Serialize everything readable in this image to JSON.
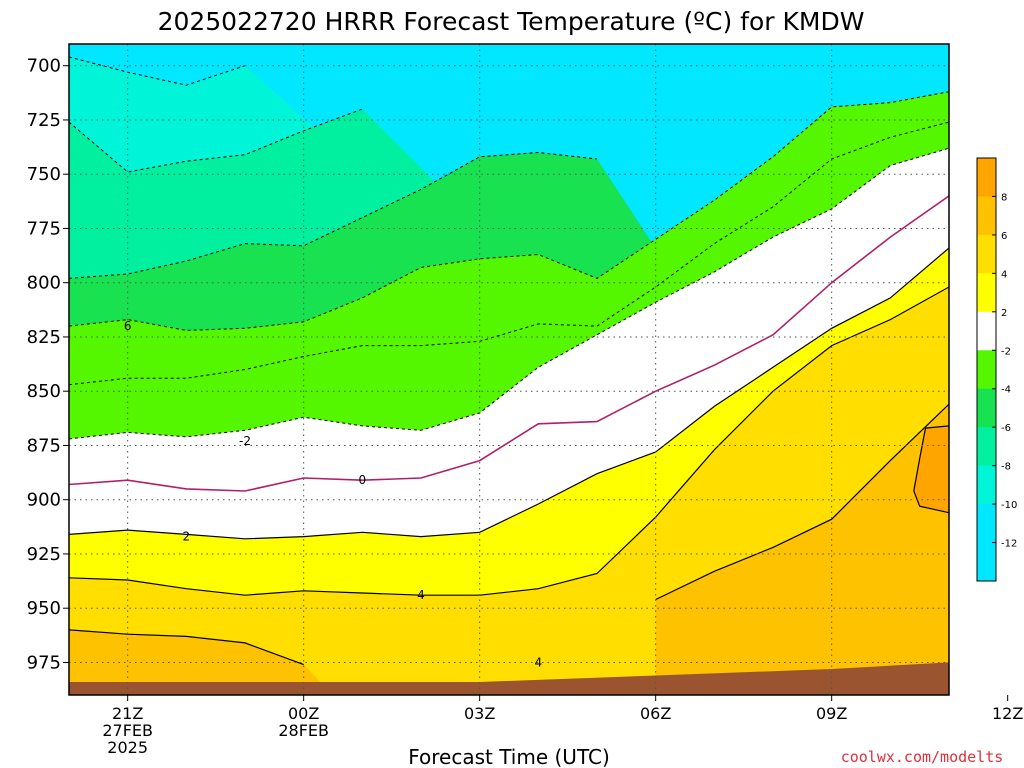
{
  "colors": {
    "ground": "#9b5430",
    "m12": "#00e7ff",
    "m10": "#00f5d8",
    "m8": "#00f0a0",
    "m6": "#18e250",
    "m4": "#54f700",
    "m2": "#ffffff",
    "p2": "#ffff00",
    "p4": "#ffde00",
    "p6": "#ffc200",
    "p8": "#ffa500",
    "zero_line": "#b0206a"
  },
  "chart_data": {
    "type": "contour",
    "title": "2025022720 HRRR Forecast Temperature (ºC) for KMDW",
    "xlabel": "Forecast Time (UTC)",
    "ylabel": "",
    "credit": "coolwx.com/modelts",
    "x_hours_from_start": [
      -1,
      14
    ],
    "ylim": [
      990,
      690
    ],
    "y_tick_labels": [
      "700",
      "725",
      "750",
      "775",
      "800",
      "825",
      "850",
      "875",
      "900",
      "925",
      "950",
      "975"
    ],
    "x_ticks": [
      {
        "label": "21Z",
        "sub": [
          "27FEB",
          "2025"
        ]
      },
      {
        "label": "00Z",
        "sub": [
          "28FEB"
        ]
      },
      {
        "label": "03Z",
        "sub": []
      },
      {
        "label": "06Z",
        "sub": []
      },
      {
        "label": "09Z",
        "sub": []
      },
      {
        "label": "12Z",
        "sub": []
      }
    ],
    "colorbar_labels": [
      "8",
      "6",
      "4",
      "2",
      "-2",
      "-4",
      "-6",
      "-8",
      "-10",
      "-12"
    ],
    "contour_labels": [
      "6",
      "-2",
      "0",
      "2",
      "4",
      "4"
    ],
    "series": [
      {
        "name": "-12",
        "points": [
          [
            -1,
            690
          ],
          [
            -1,
            696
          ],
          [
            0,
            703
          ],
          [
            1,
            709
          ],
          [
            2,
            700
          ],
          [
            2,
            690
          ]
        ]
      },
      {
        "name": "-10",
        "points": [
          [
            -1,
            690
          ],
          [
            -1,
            726
          ],
          [
            0,
            749
          ],
          [
            1,
            744
          ],
          [
            2,
            741
          ],
          [
            3,
            730
          ],
          [
            4,
            720
          ],
          [
            4,
            690
          ]
        ]
      },
      {
        "name": "-8",
        "points": [
          [
            -1,
            690
          ],
          [
            -1,
            798
          ],
          [
            0,
            796
          ],
          [
            1,
            790
          ],
          [
            2,
            782
          ],
          [
            3,
            783
          ],
          [
            4,
            770
          ],
          [
            5,
            757
          ],
          [
            6,
            742
          ],
          [
            7,
            740
          ],
          [
            8,
            743
          ],
          [
            8,
            690
          ]
        ]
      },
      {
        "name": "-6",
        "points": [
          [
            -1,
            690
          ],
          [
            -1,
            820
          ],
          [
            0,
            817
          ],
          [
            1,
            822
          ],
          [
            2,
            821
          ],
          [
            3,
            818
          ],
          [
            4,
            807
          ],
          [
            5,
            793
          ],
          [
            6,
            789
          ],
          [
            7,
            787
          ],
          [
            8,
            798
          ],
          [
            9,
            780
          ],
          [
            10,
            762
          ],
          [
            11,
            742
          ],
          [
            12,
            719
          ],
          [
            13,
            717
          ],
          [
            14,
            712
          ],
          [
            14,
            690
          ]
        ]
      },
      {
        "name": "-4",
        "points": [
          [
            -1,
            690
          ],
          [
            -1,
            847
          ],
          [
            0,
            844
          ],
          [
            1,
            844
          ],
          [
            2,
            840
          ],
          [
            3,
            834
          ],
          [
            4,
            829
          ],
          [
            5,
            829
          ],
          [
            6,
            827
          ],
          [
            7,
            819
          ],
          [
            8,
            820
          ],
          [
            9,
            802
          ],
          [
            10,
            782
          ],
          [
            11,
            765
          ],
          [
            12,
            743
          ],
          [
            13,
            733
          ],
          [
            14,
            726
          ],
          [
            14,
            690
          ]
        ]
      },
      {
        "name": "-2",
        "points": [
          [
            -1,
            690
          ],
          [
            -1,
            872
          ],
          [
            0,
            869
          ],
          [
            1,
            871
          ],
          [
            2,
            868
          ],
          [
            3,
            862
          ],
          [
            4,
            866
          ],
          [
            5,
            868
          ],
          [
            6,
            860
          ],
          [
            7,
            839
          ],
          [
            8,
            824
          ],
          [
            9,
            809
          ],
          [
            10,
            795
          ],
          [
            11,
            779
          ],
          [
            12,
            766
          ],
          [
            13,
            746
          ],
          [
            14,
            738
          ],
          [
            14,
            690
          ]
        ]
      },
      {
        "name": "0",
        "points": [
          [
            -1,
            690
          ],
          [
            -1,
            893
          ],
          [
            0,
            891
          ],
          [
            1,
            895
          ],
          [
            2,
            896
          ],
          [
            3,
            890
          ],
          [
            4,
            891
          ],
          [
            5,
            890
          ],
          [
            6,
            882
          ],
          [
            7,
            865
          ],
          [
            8,
            864
          ],
          [
            9,
            850
          ],
          [
            10,
            838
          ],
          [
            11,
            824
          ],
          [
            12,
            800
          ],
          [
            13,
            779
          ],
          [
            14,
            760
          ],
          [
            14,
            690
          ]
        ]
      },
      {
        "name": "2",
        "points": [
          [
            -1,
            690
          ],
          [
            -1,
            916
          ],
          [
            0,
            914
          ],
          [
            1,
            916
          ],
          [
            2,
            918
          ],
          [
            3,
            917
          ],
          [
            4,
            915
          ],
          [
            5,
            917
          ],
          [
            6,
            915
          ],
          [
            7,
            902
          ],
          [
            8,
            888
          ],
          [
            9,
            878
          ],
          [
            10,
            857
          ],
          [
            11,
            839
          ],
          [
            12,
            821
          ],
          [
            13,
            807
          ],
          [
            14,
            784
          ],
          [
            14,
            690
          ]
        ]
      },
      {
        "name": "4",
        "points": [
          [
            -1,
            690
          ],
          [
            -1,
            936
          ],
          [
            0,
            937
          ],
          [
            1,
            941
          ],
          [
            2,
            944
          ],
          [
            3,
            942
          ],
          [
            4,
            943
          ],
          [
            5,
            944
          ],
          [
            6,
            944
          ],
          [
            7,
            941
          ],
          [
            8,
            934
          ],
          [
            9,
            908
          ],
          [
            10,
            877
          ],
          [
            11,
            850
          ],
          [
            12,
            829
          ],
          [
            13,
            817
          ],
          [
            14,
            802
          ],
          [
            14,
            690
          ]
        ]
      },
      {
        "name": "6",
        "points": [
          [
            14,
            690
          ],
          [
            14,
            990
          ],
          [
            9,
            990
          ],
          [
            9,
            946
          ],
          [
            10,
            933
          ],
          [
            11,
            922
          ],
          [
            12,
            909
          ],
          [
            13,
            882
          ],
          [
            14,
            856
          ]
        ]
      },
      {
        "name": "6-low",
        "points": [
          [
            -1,
            960
          ],
          [
            0,
            962
          ],
          [
            1,
            963
          ],
          [
            2,
            966
          ],
          [
            3,
            976
          ],
          [
            3.5,
            990
          ],
          [
            -1,
            990
          ]
        ]
      },
      {
        "name": "8",
        "points": [
          [
            14,
            866
          ],
          [
            13.6,
            867
          ],
          [
            13.5,
            881
          ],
          [
            13.4,
            896
          ],
          [
            13.5,
            903
          ],
          [
            14,
            906
          ]
        ]
      }
    ]
  }
}
